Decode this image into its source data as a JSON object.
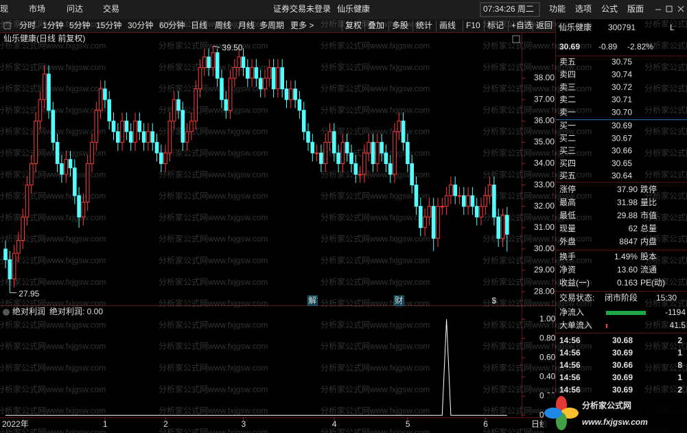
{
  "top_bar": {
    "menu": [
      "现",
      "市场",
      "问达",
      "交易"
    ],
    "notice": "证券交易未登录",
    "stock": "仙乐健康",
    "clock": "07:34:26 周二",
    "right_menu": [
      "功能",
      "选项",
      "公式",
      "版面"
    ]
  },
  "toolbar": {
    "periods": [
      "分时",
      "1分钟",
      "5分钟",
      "15分钟",
      "30分钟",
      "60分钟",
      "日线",
      "周线",
      "月线",
      "多周期",
      "更多 >"
    ],
    "active": "日线",
    "tools": [
      "复权",
      "叠加",
      "多股",
      "统计",
      "画线",
      "F10",
      "标记",
      "+自选",
      "返回"
    ]
  },
  "chart_data": [
    {
      "type": "candlestick",
      "title": "仙乐健康(日线 前复权)",
      "period": "日线",
      "up_color": "#ff3c3c",
      "down_color": "#54fcfc",
      "ylim": [
        27.36,
        40.06
      ],
      "yticks": [
        {
          "value": 28,
          "label": "28.00"
        },
        {
          "value": 29,
          "label": "29.00"
        },
        {
          "value": 30,
          "label": "30.00"
        },
        {
          "value": 31,
          "label": "31.00"
        },
        {
          "value": 32,
          "label": "32.00"
        },
        {
          "value": 33,
          "label": "33.00"
        },
        {
          "value": 34,
          "label": "34.00"
        },
        {
          "value": 35,
          "label": "35.00"
        },
        {
          "value": 36,
          "label": "36.00"
        },
        {
          "value": 37,
          "label": "37.00"
        },
        {
          "value": 38,
          "label": "38.00"
        }
      ],
      "categories": [
        "2022年",
        null,
        null,
        null,
        null,
        null,
        null,
        null,
        null,
        null,
        null,
        null,
        null,
        null,
        null,
        null,
        null,
        null,
        null,
        null,
        null,
        null,
        null,
        "1",
        null,
        null,
        null,
        null,
        null,
        null,
        null,
        null,
        null,
        null,
        null,
        null,
        null,
        "2",
        null,
        null,
        null,
        null,
        null,
        null,
        null,
        null,
        null,
        null,
        null,
        null,
        null,
        null,
        null,
        null,
        null,
        "3",
        null,
        null,
        null,
        null,
        null,
        null,
        null,
        null,
        null,
        null,
        null,
        null,
        null,
        null,
        null,
        null,
        null,
        null,
        null,
        null,
        "4",
        null,
        null,
        null,
        null,
        null,
        null,
        null,
        null,
        null,
        null,
        null,
        null,
        null,
        null,
        null,
        null,
        "5",
        null,
        null,
        null,
        null,
        null,
        null,
        null,
        null,
        null,
        null,
        null,
        null,
        null,
        null,
        null,
        null,
        null,
        "6",
        null,
        null,
        null,
        null,
        null
      ],
      "candles": [
        [
          30.0,
          30.4,
          29.1,
          29.5
        ],
        [
          29.5,
          29.9,
          27.95,
          28.6
        ],
        [
          28.6,
          30.2,
          28.2,
          29.8
        ],
        [
          29.8,
          30.8,
          29.4,
          30.4
        ],
        [
          30.4,
          31.9,
          30.0,
          31.5
        ],
        [
          31.5,
          33.4,
          31.1,
          33.0
        ],
        [
          33.0,
          34.4,
          32.6,
          34.0
        ],
        [
          34.0,
          36.4,
          33.6,
          36.0
        ],
        [
          36.0,
          37.4,
          35.6,
          37.0
        ],
        [
          37.0,
          38.6,
          36.6,
          38.2
        ],
        [
          38.2,
          38.6,
          36.1,
          36.5
        ],
        [
          36.5,
          36.9,
          34.6,
          35.0
        ],
        [
          35.0,
          35.4,
          33.6,
          34.0
        ],
        [
          34.0,
          34.4,
          33.1,
          33.5
        ],
        [
          33.5,
          34.6,
          33.1,
          34.2
        ],
        [
          34.2,
          34.6,
          33.4,
          33.8
        ],
        [
          33.8,
          34.2,
          32.1,
          32.5
        ],
        [
          32.5,
          32.9,
          31.0,
          31.5
        ],
        [
          31.5,
          32.6,
          31.1,
          32.2
        ],
        [
          32.2,
          34.4,
          31.8,
          34.0
        ],
        [
          34.0,
          35.4,
          33.6,
          35.0
        ],
        [
          35.0,
          36.9,
          34.6,
          36.5
        ],
        [
          36.5,
          37.9,
          36.1,
          37.5
        ],
        [
          37.5,
          37.9,
          36.6,
          37.0
        ],
        [
          37.0,
          37.4,
          35.6,
          36.0
        ],
        [
          36.0,
          36.4,
          35.1,
          35.5
        ],
        [
          35.5,
          35.9,
          34.6,
          35.0
        ],
        [
          35.0,
          36.4,
          34.6,
          36.0
        ],
        [
          36.0,
          36.4,
          35.1,
          35.5
        ],
        [
          35.5,
          35.9,
          34.6,
          35.0
        ],
        [
          35.0,
          36.4,
          34.6,
          36.0
        ],
        [
          36.0,
          36.4,
          35.1,
          35.5
        ],
        [
          35.5,
          35.9,
          34.6,
          35.0
        ],
        [
          35.0,
          35.9,
          34.6,
          35.5
        ],
        [
          35.5,
          35.9,
          34.6,
          35.0
        ],
        [
          35.0,
          35.4,
          34.1,
          34.5
        ],
        [
          34.5,
          34.9,
          33.6,
          34.0
        ],
        [
          34.0,
          34.9,
          33.6,
          34.5
        ],
        [
          34.5,
          36.4,
          34.1,
          36.0
        ],
        [
          36.0,
          37.4,
          35.6,
          37.0
        ],
        [
          37.0,
          37.4,
          36.1,
          36.5
        ],
        [
          36.5,
          36.9,
          34.6,
          35.0
        ],
        [
          35.0,
          35.9,
          34.6,
          35.5
        ],
        [
          35.5,
          36.4,
          35.1,
          36.0
        ],
        [
          36.0,
          37.9,
          35.6,
          37.5
        ],
        [
          37.5,
          38.9,
          37.1,
          38.5
        ],
        [
          38.5,
          39.4,
          38.1,
          39.0
        ],
        [
          39.0,
          39.4,
          38.1,
          38.5
        ],
        [
          38.5,
          39.5,
          38.1,
          39.2
        ],
        [
          39.2,
          39.4,
          37.6,
          38.0
        ],
        [
          38.0,
          38.4,
          36.6,
          37.0
        ],
        [
          37.0,
          37.4,
          36.1,
          36.5
        ],
        [
          36.5,
          38.4,
          36.1,
          38.0
        ],
        [
          38.0,
          38.9,
          37.6,
          38.5
        ],
        [
          38.5,
          39.4,
          38.1,
          39.0
        ],
        [
          39.0,
          39.4,
          38.1,
          38.5
        ],
        [
          38.5,
          38.9,
          37.6,
          38.0
        ],
        [
          38.0,
          38.9,
          37.6,
          38.5
        ],
        [
          38.5,
          38.9,
          37.6,
          38.0
        ],
        [
          38.0,
          38.4,
          37.1,
          37.5
        ],
        [
          37.5,
          38.4,
          37.1,
          38.0
        ],
        [
          38.0,
          38.9,
          37.6,
          38.5
        ],
        [
          38.5,
          38.9,
          37.1,
          37.5
        ],
        [
          37.5,
          38.9,
          37.1,
          38.5
        ],
        [
          38.5,
          38.9,
          37.1,
          37.5
        ],
        [
          37.5,
          37.9,
          36.6,
          37.0
        ],
        [
          37.0,
          37.9,
          36.6,
          37.5
        ],
        [
          37.5,
          37.9,
          36.6,
          37.0
        ],
        [
          37.0,
          37.4,
          36.1,
          36.5
        ],
        [
          36.5,
          36.9,
          35.1,
          35.5
        ],
        [
          35.5,
          35.9,
          34.6,
          35.0
        ],
        [
          35.0,
          35.4,
          34.1,
          34.5
        ],
        [
          34.5,
          34.9,
          34.1,
          34.5
        ],
        [
          34.5,
          34.9,
          33.6,
          34.0
        ],
        [
          34.0,
          35.4,
          33.6,
          35.0
        ],
        [
          35.0,
          35.9,
          34.6,
          35.5
        ],
        [
          35.5,
          35.9,
          34.1,
          34.5
        ],
        [
          34.5,
          34.9,
          33.6,
          34.0
        ],
        [
          34.0,
          35.4,
          33.6,
          35.0
        ],
        [
          35.0,
          35.4,
          34.1,
          34.5
        ],
        [
          34.5,
          34.9,
          33.6,
          34.0
        ],
        [
          34.0,
          34.4,
          33.1,
          33.5
        ],
        [
          33.5,
          33.9,
          33.1,
          33.5
        ],
        [
          33.5,
          34.9,
          33.1,
          34.5
        ],
        [
          34.5,
          35.4,
          34.1,
          35.0
        ],
        [
          35.0,
          35.4,
          33.6,
          34.0
        ],
        [
          34.0,
          35.4,
          33.6,
          35.0
        ],
        [
          35.0,
          35.4,
          34.1,
          34.5
        ],
        [
          34.5,
          34.9,
          33.6,
          34.0
        ],
        [
          34.0,
          34.4,
          33.1,
          33.5
        ],
        [
          33.5,
          35.9,
          33.1,
          35.5
        ],
        [
          35.5,
          36.4,
          35.1,
          36.0
        ],
        [
          36.0,
          36.4,
          34.6,
          35.0
        ],
        [
          35.0,
          35.4,
          33.6,
          34.0
        ],
        [
          34.0,
          34.4,
          32.6,
          33.0
        ],
        [
          33.0,
          33.4,
          31.6,
          32.0
        ],
        [
          32.0,
          32.4,
          30.6,
          31.0
        ],
        [
          31.0,
          31.9,
          30.6,
          31.5
        ],
        [
          31.5,
          32.4,
          31.1,
          32.0
        ],
        [
          32.0,
          32.4,
          29.9,
          30.5
        ],
        [
          30.5,
          32.4,
          30.1,
          32.0
        ],
        [
          32.0,
          32.4,
          31.6,
          32.0
        ],
        [
          32.0,
          32.9,
          31.6,
          32.5
        ],
        [
          32.5,
          33.4,
          32.1,
          33.0
        ],
        [
          33.0,
          33.4,
          32.1,
          32.5
        ],
        [
          32.5,
          32.9,
          32.1,
          32.5
        ],
        [
          32.5,
          32.9,
          31.6,
          32.0
        ],
        [
          32.0,
          32.9,
          31.6,
          32.5
        ],
        [
          32.5,
          32.9,
          31.6,
          32.0
        ],
        [
          32.0,
          32.4,
          31.1,
          31.5
        ],
        [
          31.5,
          32.4,
          31.1,
          32.0
        ],
        [
          32.0,
          32.9,
          31.6,
          32.5
        ],
        [
          32.5,
          33.4,
          32.1,
          33.0
        ],
        [
          33.0,
          33.4,
          31.1,
          31.5
        ],
        [
          31.5,
          31.9,
          30.1,
          30.5
        ],
        [
          30.5,
          31.9,
          30.1,
          31.58
        ],
        [
          31.58,
          31.98,
          29.88,
          30.69
        ]
      ],
      "annotations": [
        {
          "index": 48,
          "value": 39.5,
          "label": "39.50"
        },
        {
          "index": 1,
          "value": 27.95,
          "label": "27.95"
        }
      ],
      "events": [
        {
          "index": 71,
          "label": "解",
          "color": "#54fcfc"
        },
        {
          "index": 91,
          "label": "财",
          "color": "#54fcfc"
        },
        {
          "index": 113,
          "label": "$",
          "color": "#ff3c3c"
        }
      ]
    },
    {
      "type": "line",
      "title": "绝对利润",
      "legend": "绝对利润: 0.00",
      "color": "#ffffff",
      "ylim": [
        -0.02,
        1.13
      ],
      "yticks": [
        {
          "value": 0,
          "label": "0.00"
        },
        {
          "value": 0.2,
          "label": "0.20"
        },
        {
          "value": 0.4,
          "label": "0.40"
        },
        {
          "value": 0.6,
          "label": "0.60"
        },
        {
          "value": 0.8,
          "label": "0.80"
        },
        {
          "value": 1,
          "label": "1.00"
        }
      ],
      "values": [
        0,
        0,
        0,
        0,
        0,
        0,
        0,
        0,
        0,
        0,
        0,
        0,
        0,
        0,
        0,
        0,
        0,
        0,
        0,
        0,
        0,
        0,
        0,
        0,
        0,
        0,
        0,
        0,
        0,
        0,
        0,
        0,
        0,
        0,
        0,
        0,
        0,
        0,
        0,
        0,
        0,
        0,
        0,
        0,
        0,
        0,
        0,
        0,
        0,
        0,
        0,
        0,
        0,
        0,
        0,
        0,
        0,
        0,
        0,
        0,
        0,
        0,
        0,
        0,
        0,
        0,
        0,
        0,
        0,
        0,
        0,
        0,
        0,
        0,
        0,
        0,
        0,
        0,
        0,
        0,
        0,
        0,
        0,
        0,
        0,
        0,
        0,
        0,
        0,
        0,
        0,
        0,
        0,
        0,
        0,
        0,
        0,
        0,
        0,
        0,
        0,
        0,
        1,
        0,
        0,
        0,
        0,
        0,
        0,
        0,
        0,
        0,
        0,
        0,
        0,
        0,
        0
      ]
    }
  ],
  "quote": {
    "name": "仙乐健康",
    "code": "300791",
    "flag": "L",
    "price": "30.69",
    "change": "-0.89",
    "pct": "-2.82%",
    "asks": [
      {
        "label": "卖五",
        "price": "30.75"
      },
      {
        "label": "卖四",
        "price": "30.74"
      },
      {
        "label": "卖三",
        "price": "30.72"
      },
      {
        "label": "卖二",
        "price": "30.71"
      },
      {
        "label": "卖一",
        "price": "30.70"
      }
    ],
    "bids": [
      {
        "label": "买一",
        "price": "30.69"
      },
      {
        "label": "买二",
        "price": "30.67"
      },
      {
        "label": "买三",
        "price": "30.66"
      },
      {
        "label": "买四",
        "price": "30.65"
      },
      {
        "label": "买五",
        "price": "30.64"
      }
    ],
    "stats": [
      {
        "label": "涨停",
        "value": "37.90",
        "right": "跌停",
        "color": "#ff3c3c"
      },
      {
        "label": "最高",
        "value": "31.98",
        "right": "量比",
        "color": "#ff3c3c"
      },
      {
        "label": "最低",
        "value": "29.88",
        "right": "市值",
        "color": "#3cd070"
      },
      {
        "label": "现量",
        "value": "62",
        "right": "总量",
        "color": "#e8e8e8"
      },
      {
        "label": "外盘",
        "value": "8847",
        "right": "内盘",
        "color": "#ff3c3c"
      }
    ],
    "stats2": [
      {
        "label": "换手",
        "value": "1.49%",
        "right": "股本"
      },
      {
        "label": "净资",
        "value": "13.60",
        "right": "流通"
      },
      {
        "label": "收益(一)",
        "value": "0.163",
        "right": "PE(动)"
      }
    ],
    "status": {
      "label": "交易状态:",
      "value": "闭市阶段",
      "time": "15:30"
    },
    "flows": [
      {
        "label": "净流入",
        "value": "-1194",
        "color": "#3cd070"
      },
      {
        "label": "大单流入",
        "value": "41.5",
        "color": "#ff3c3c"
      }
    ],
    "ticks": [
      {
        "time": "14:56",
        "price": "30.68",
        "volume": "2",
        "color": "#3cd070"
      },
      {
        "time": "14:56",
        "price": "30.69",
        "volume": "1",
        "color": "#3cd070"
      },
      {
        "time": "14:56",
        "price": "30.66",
        "volume": "8",
        "color": "#3cd070"
      },
      {
        "time": "14:56",
        "price": "30.69",
        "volume": "1",
        "color": "#3cd070"
      },
      {
        "time": "14:56",
        "price": "30.69",
        "volume": "2",
        "color": "#3cd070"
      }
    ]
  },
  "watermark": "分析家公式网www.fxjgsw.com",
  "logo": {
    "name": "分析家公式网",
    "url": "www.fxjgsw.com"
  }
}
